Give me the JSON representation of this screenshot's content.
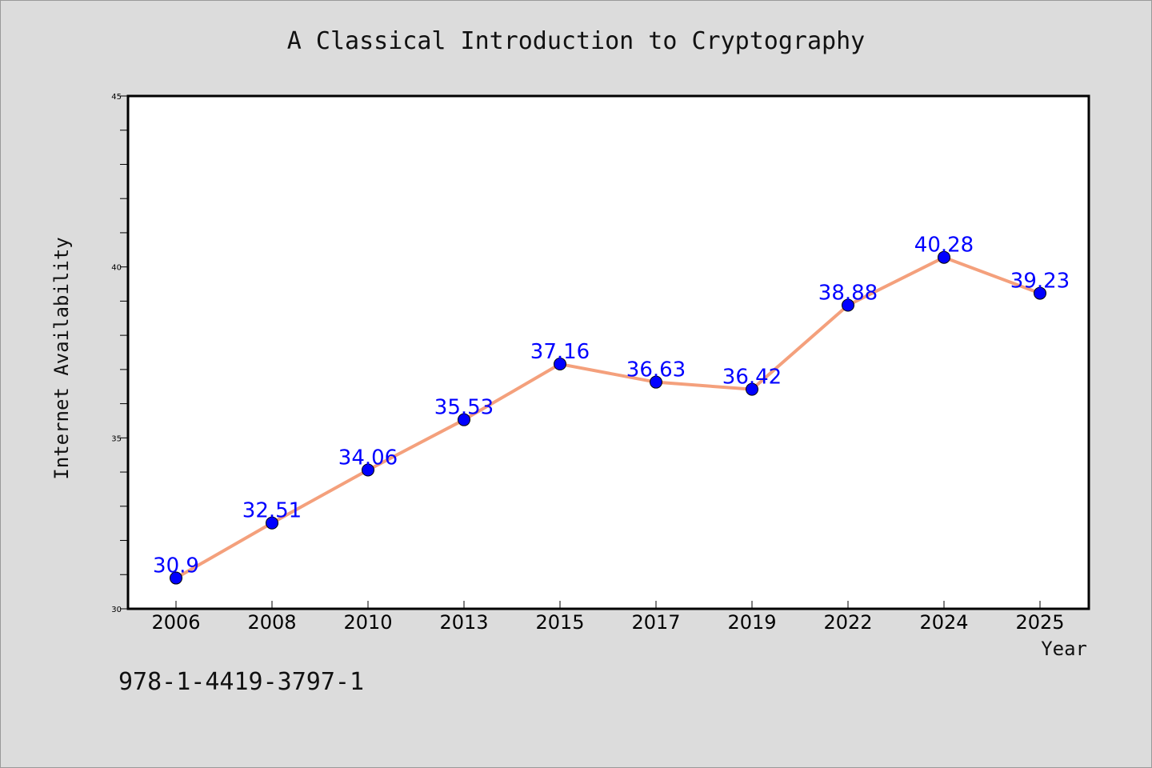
{
  "chart_data": {
    "type": "line",
    "title": "A Classical Introduction to Cryptography",
    "xlabel": "Year",
    "ylabel": "Internet Availability",
    "categories": [
      "2006",
      "2008",
      "2010",
      "2013",
      "2015",
      "2017",
      "2019",
      "2022",
      "2024",
      "2025"
    ],
    "values": [
      30.9,
      32.51,
      34.06,
      35.53,
      37.16,
      36.63,
      36.42,
      38.88,
      40.28,
      39.23
    ],
    "data_labels": [
      "30.9",
      "32.51",
      "34.06",
      "35.53",
      "37.16",
      "36.63",
      "36.42",
      "38.88",
      "40.28",
      "39.23"
    ],
    "ylim": [
      30,
      45
    ],
    "y_major_ticks": [
      30,
      35,
      40,
      45
    ],
    "y_major_tick_labels": [
      "30",
      "35",
      "40",
      "45"
    ],
    "y_minor_tick_step": 1,
    "grid": false,
    "legend": "none",
    "colors": {
      "line": "#f4a07c",
      "marker": "#0000ff",
      "data_label": "#0000ff",
      "plot_background": "#ffffff",
      "figure_background": "#dcdcdc"
    }
  },
  "footer": {
    "isbn": "978-1-4419-3797-1"
  }
}
